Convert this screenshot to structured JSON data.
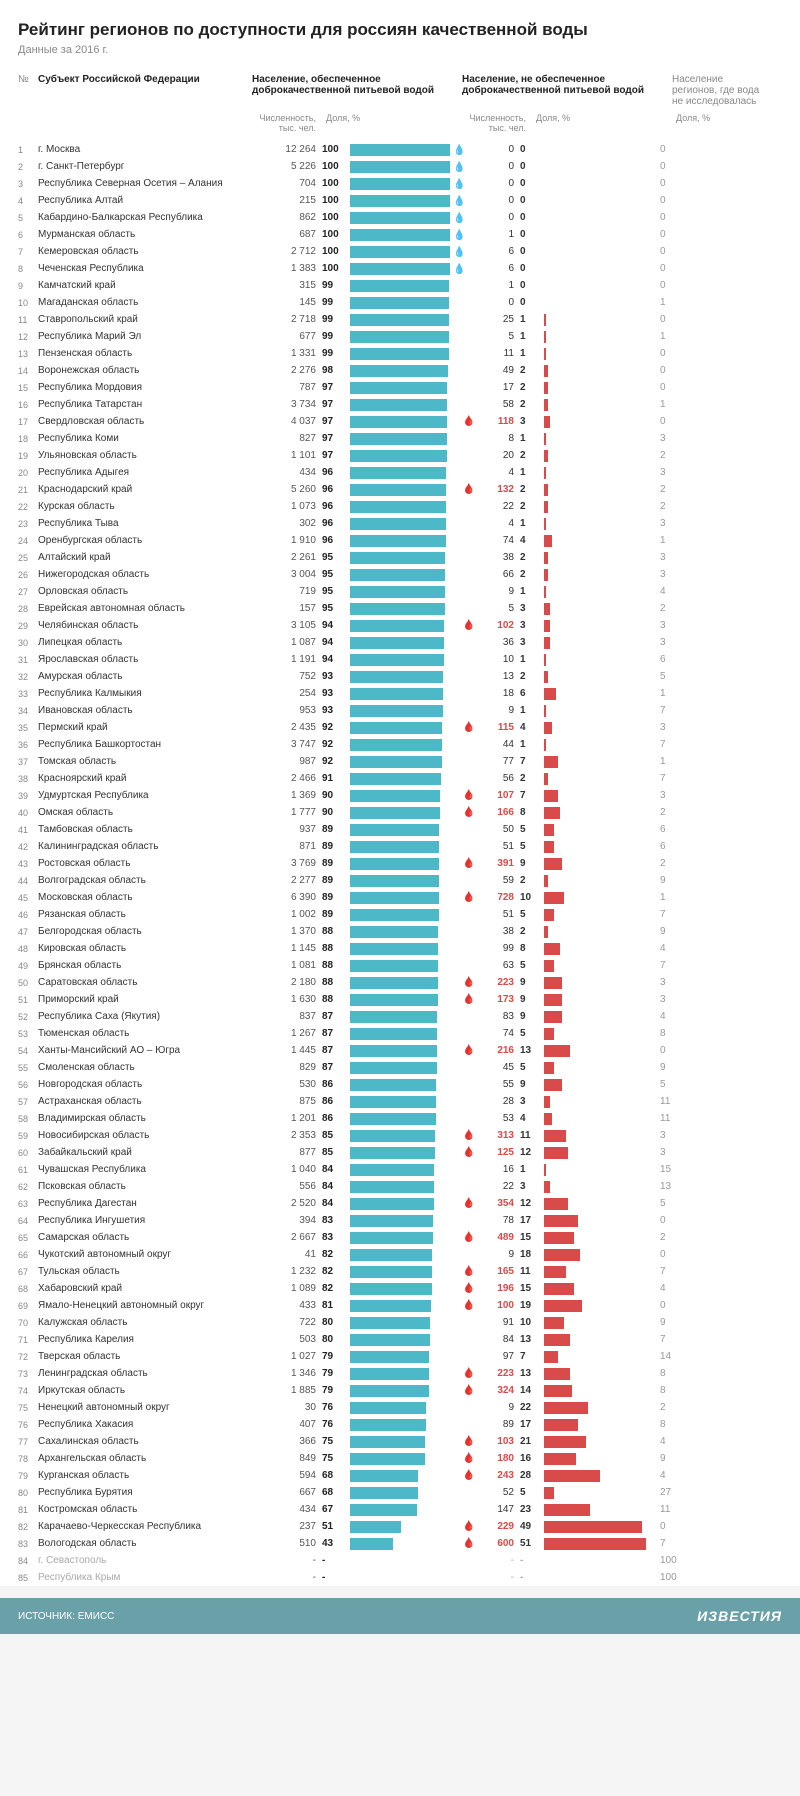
{
  "title": "Рейтинг регионов по доступности для россиян качественной воды",
  "subtitle": "Данные за 2016 г.",
  "headers": {
    "num": "№",
    "name": "Субъект Российской Федерации",
    "good": "Население, обеспеченное доброкачественной питьевой водой",
    "bad": "Население, не обеспеченное доброкачественной питьевой водой",
    "nores": "Население регионов, где вода не исследовалась",
    "pop": "Численность, тыс. чел.",
    "share": "Доля, %"
  },
  "colors": {
    "good_bar": "#4db8c7",
    "bad_bar": "#d94a4a",
    "background": "#ffffff",
    "footer_bg": "#6aa0a8",
    "muted": "#888888"
  },
  "footer": {
    "source": "ИСТОЧНИК: ЕМИСС",
    "brand": "ИЗВЕСТИЯ"
  },
  "rows": [
    {
      "n": 1,
      "name": "г. Москва",
      "gp": "12 264",
      "gs": 100,
      "bp": "0",
      "bs": 0,
      "nr": 0,
      "drop": true
    },
    {
      "n": 2,
      "name": "г. Санкт-Петербург",
      "gp": "5 226",
      "gs": 100,
      "bp": "0",
      "bs": 0,
      "nr": 0,
      "drop": true
    },
    {
      "n": 3,
      "name": "Республика Северная Осетия – Алания",
      "gp": "704",
      "gs": 100,
      "bp": "0",
      "bs": 0,
      "nr": 0,
      "drop": true
    },
    {
      "n": 4,
      "name": "Республика Алтай",
      "gp": "215",
      "gs": 100,
      "bp": "0",
      "bs": 0,
      "nr": 0,
      "drop": true
    },
    {
      "n": 5,
      "name": "Кабардино-Балкарская Республика",
      "gp": "862",
      "gs": 100,
      "bp": "0",
      "bs": 0,
      "nr": 0,
      "drop": true
    },
    {
      "n": 6,
      "name": "Мурманская область",
      "gp": "687",
      "gs": 100,
      "bp": "1",
      "bs": 0,
      "nr": 0,
      "drop": true
    },
    {
      "n": 7,
      "name": "Кемеровская область",
      "gp": "2 712",
      "gs": 100,
      "bp": "6",
      "bs": 0,
      "nr": 0,
      "drop": true
    },
    {
      "n": 8,
      "name": "Чеченская Республика",
      "gp": "1 383",
      "gs": 100,
      "bp": "6",
      "bs": 0,
      "nr": 0,
      "drop": true
    },
    {
      "n": 9,
      "name": "Камчатский край",
      "gp": "315",
      "gs": 99,
      "bp": "1",
      "bs": 0,
      "nr": 0
    },
    {
      "n": 10,
      "name": "Магаданская область",
      "gp": "145",
      "gs": 99,
      "bp": "0",
      "bs": 0,
      "nr": 1
    },
    {
      "n": 11,
      "name": "Ставропольский край",
      "gp": "2 718",
      "gs": 99,
      "bp": "25",
      "bs": 1,
      "nr": 0
    },
    {
      "n": 12,
      "name": "Республика Марий Эл",
      "gp": "677",
      "gs": 99,
      "bp": "5",
      "bs": 1,
      "nr": 1
    },
    {
      "n": 13,
      "name": "Пензенская область",
      "gp": "1 331",
      "gs": 99,
      "bp": "11",
      "bs": 1,
      "nr": 0
    },
    {
      "n": 14,
      "name": "Воронежская область",
      "gp": "2 276",
      "gs": 98,
      "bp": "49",
      "bs": 2,
      "nr": 0
    },
    {
      "n": 15,
      "name": "Республика Мордовия",
      "gp": "787",
      "gs": 97,
      "bp": "17",
      "bs": 2,
      "nr": 0
    },
    {
      "n": 16,
      "name": "Республика Татарстан",
      "gp": "3 734",
      "gs": 97,
      "bp": "58",
      "bs": 2,
      "nr": 1
    },
    {
      "n": 17,
      "name": "Свердловская область",
      "gp": "4 037",
      "gs": 97,
      "bp": "118",
      "bs": 3,
      "nr": 0,
      "flag": true
    },
    {
      "n": 18,
      "name": "Республика Коми",
      "gp": "827",
      "gs": 97,
      "bp": "8",
      "bs": 1,
      "nr": 3
    },
    {
      "n": 19,
      "name": "Ульяновская область",
      "gp": "1 101",
      "gs": 97,
      "bp": "20",
      "bs": 2,
      "nr": 2
    },
    {
      "n": 20,
      "name": "Республика Адыгея",
      "gp": "434",
      "gs": 96,
      "bp": "4",
      "bs": 1,
      "nr": 3
    },
    {
      "n": 21,
      "name": "Краснодарский край",
      "gp": "5 260",
      "gs": 96,
      "bp": "132",
      "bs": 2,
      "nr": 2,
      "flag": true
    },
    {
      "n": 22,
      "name": "Курская область",
      "gp": "1 073",
      "gs": 96,
      "bp": "22",
      "bs": 2,
      "nr": 2
    },
    {
      "n": 23,
      "name": "Республика Тыва",
      "gp": "302",
      "gs": 96,
      "bp": "4",
      "bs": 1,
      "nr": 3
    },
    {
      "n": 24,
      "name": "Оренбургская область",
      "gp": "1 910",
      "gs": 96,
      "bp": "74",
      "bs": 4,
      "nr": 1
    },
    {
      "n": 25,
      "name": "Алтайский край",
      "gp": "2 261",
      "gs": 95,
      "bp": "38",
      "bs": 2,
      "nr": 3
    },
    {
      "n": 26,
      "name": "Нижегородская область",
      "gp": "3 004",
      "gs": 95,
      "bp": "66",
      "bs": 2,
      "nr": 3
    },
    {
      "n": 27,
      "name": "Орловская область",
      "gp": "719",
      "gs": 95,
      "bp": "9",
      "bs": 1,
      "nr": 4
    },
    {
      "n": 28,
      "name": "Еврейская автономная область",
      "gp": "157",
      "gs": 95,
      "bp": "5",
      "bs": 3,
      "nr": 2
    },
    {
      "n": 29,
      "name": "Челябинская область",
      "gp": "3 105",
      "gs": 94,
      "bp": "102",
      "bs": 3,
      "nr": 3,
      "flag": true
    },
    {
      "n": 30,
      "name": "Липецкая область",
      "gp": "1 087",
      "gs": 94,
      "bp": "36",
      "bs": 3,
      "nr": 3
    },
    {
      "n": 31,
      "name": "Ярославская область",
      "gp": "1 191",
      "gs": 94,
      "bp": "10",
      "bs": 1,
      "nr": 6
    },
    {
      "n": 32,
      "name": "Амурская область",
      "gp": "752",
      "gs": 93,
      "bp": "13",
      "bs": 2,
      "nr": 5
    },
    {
      "n": 33,
      "name": "Республика Калмыкия",
      "gp": "254",
      "gs": 93,
      "bp": "18",
      "bs": 6,
      "nr": 1
    },
    {
      "n": 34,
      "name": "Ивановская область",
      "gp": "953",
      "gs": 93,
      "bp": "9",
      "bs": 1,
      "nr": 7
    },
    {
      "n": 35,
      "name": "Пермский край",
      "gp": "2 435",
      "gs": 92,
      "bp": "115",
      "bs": 4,
      "nr": 3,
      "flag": true
    },
    {
      "n": 36,
      "name": "Республика Башкортостан",
      "gp": "3 747",
      "gs": 92,
      "bp": "44",
      "bs": 1,
      "nr": 7
    },
    {
      "n": 37,
      "name": "Томская область",
      "gp": "987",
      "gs": 92,
      "bp": "77",
      "bs": 7,
      "nr": 1
    },
    {
      "n": 38,
      "name": "Красноярский край",
      "gp": "2 466",
      "gs": 91,
      "bp": "56",
      "bs": 2,
      "nr": 7
    },
    {
      "n": 39,
      "name": "Удмуртская Республика",
      "gp": "1 369",
      "gs": 90,
      "bp": "107",
      "bs": 7,
      "nr": 3,
      "flag": true
    },
    {
      "n": 40,
      "name": "Омская область",
      "gp": "1 777",
      "gs": 90,
      "bp": "166",
      "bs": 8,
      "nr": 2,
      "flag": true
    },
    {
      "n": 41,
      "name": "Тамбовская область",
      "gp": "937",
      "gs": 89,
      "bp": "50",
      "bs": 5,
      "nr": 6
    },
    {
      "n": 42,
      "name": "Калининградская область",
      "gp": "871",
      "gs": 89,
      "bp": "51",
      "bs": 5,
      "nr": 6
    },
    {
      "n": 43,
      "name": "Ростовская область",
      "gp": "3 769",
      "gs": 89,
      "bp": "391",
      "bs": 9,
      "nr": 2,
      "flag": true
    },
    {
      "n": 44,
      "name": "Волгоградская область",
      "gp": "2 277",
      "gs": 89,
      "bp": "59",
      "bs": 2,
      "nr": 9
    },
    {
      "n": 45,
      "name": "Московская область",
      "gp": "6 390",
      "gs": 89,
      "bp": "728",
      "bs": 10,
      "nr": 1,
      "flag": true
    },
    {
      "n": 46,
      "name": "Рязанская область",
      "gp": "1 002",
      "gs": 89,
      "bp": "51",
      "bs": 5,
      "nr": 7
    },
    {
      "n": 47,
      "name": "Белгородская область",
      "gp": "1 370",
      "gs": 88,
      "bp": "38",
      "bs": 2,
      "nr": 9
    },
    {
      "n": 48,
      "name": "Кировская область",
      "gp": "1 145",
      "gs": 88,
      "bp": "99",
      "bs": 8,
      "nr": 4
    },
    {
      "n": 49,
      "name": "Брянская область",
      "gp": "1 081",
      "gs": 88,
      "bp": "63",
      "bs": 5,
      "nr": 7
    },
    {
      "n": 50,
      "name": "Саратовская область",
      "gp": "2 180",
      "gs": 88,
      "bp": "223",
      "bs": 9,
      "nr": 3,
      "flag": true
    },
    {
      "n": 51,
      "name": "Приморский край",
      "gp": "1 630",
      "gs": 88,
      "bp": "173",
      "bs": 9,
      "nr": 3,
      "flag": true
    },
    {
      "n": 52,
      "name": "Республика Саха (Якутия)",
      "gp": "837",
      "gs": 87,
      "bp": "83",
      "bs": 9,
      "nr": 4
    },
    {
      "n": 53,
      "name": "Тюменская область",
      "gp": "1 267",
      "gs": 87,
      "bp": "74",
      "bs": 5,
      "nr": 8
    },
    {
      "n": 54,
      "name": "Ханты-Мансийский АО – Югра",
      "gp": "1 445",
      "gs": 87,
      "bp": "216",
      "bs": 13,
      "nr": 0,
      "flag": true
    },
    {
      "n": 55,
      "name": "Смоленская область",
      "gp": "829",
      "gs": 87,
      "bp": "45",
      "bs": 5,
      "nr": 9
    },
    {
      "n": 56,
      "name": "Новгородская область",
      "gp": "530",
      "gs": 86,
      "bp": "55",
      "bs": 9,
      "nr": 5
    },
    {
      "n": 57,
      "name": "Астраханская область",
      "gp": "875",
      "gs": 86,
      "bp": "28",
      "bs": 3,
      "nr": 11
    },
    {
      "n": 58,
      "name": "Владимирская область",
      "gp": "1 201",
      "gs": 86,
      "bp": "53",
      "bs": 4,
      "nr": 11
    },
    {
      "n": 59,
      "name": "Новосибирская область",
      "gp": "2 353",
      "gs": 85,
      "bp": "313",
      "bs": 11,
      "nr": 3,
      "flag": true
    },
    {
      "n": 60,
      "name": "Забайкальский край",
      "gp": "877",
      "gs": 85,
      "bp": "125",
      "bs": 12,
      "nr": 3,
      "flag": true
    },
    {
      "n": 61,
      "name": "Чувашская Республика",
      "gp": "1 040",
      "gs": 84,
      "bp": "16",
      "bs": 1,
      "nr": 15
    },
    {
      "n": 62,
      "name": "Псковская область",
      "gp": "556",
      "gs": 84,
      "bp": "22",
      "bs": 3,
      "nr": 13
    },
    {
      "n": 63,
      "name": "Республика Дагестан",
      "gp": "2 520",
      "gs": 84,
      "bp": "354",
      "bs": 12,
      "nr": 5,
      "flag": true
    },
    {
      "n": 64,
      "name": "Республика Ингушетия",
      "gp": "394",
      "gs": 83,
      "bp": "78",
      "bs": 17,
      "nr": 0
    },
    {
      "n": 65,
      "name": "Самарская область",
      "gp": "2 667",
      "gs": 83,
      "bp": "489",
      "bs": 15,
      "nr": 2,
      "flag": true
    },
    {
      "n": 66,
      "name": "Чукотский автономный округ",
      "gp": "41",
      "gs": 82,
      "bp": "9",
      "bs": 18,
      "nr": 0
    },
    {
      "n": 67,
      "name": "Тульская область",
      "gp": "1 232",
      "gs": 82,
      "bp": "165",
      "bs": 11,
      "nr": 7,
      "flag": true
    },
    {
      "n": 68,
      "name": "Хабаровский край",
      "gp": "1 089",
      "gs": 82,
      "bp": "196",
      "bs": 15,
      "nr": 4,
      "flag": true
    },
    {
      "n": 69,
      "name": "Ямало-Ненецкий автономный округ",
      "gp": "433",
      "gs": 81,
      "bp": "100",
      "bs": 19,
      "nr": 0,
      "flag": true
    },
    {
      "n": 70,
      "name": "Калужская область",
      "gp": "722",
      "gs": 80,
      "bp": "91",
      "bs": 10,
      "nr": 9
    },
    {
      "n": 71,
      "name": "Республика Карелия",
      "gp": "503",
      "gs": 80,
      "bp": "84",
      "bs": 13,
      "nr": 7
    },
    {
      "n": 72,
      "name": "Тверская область",
      "gp": "1 027",
      "gs": 79,
      "bp": "97",
      "bs": 7,
      "nr": 14
    },
    {
      "n": 73,
      "name": "Ленинградская область",
      "gp": "1 346",
      "gs": 79,
      "bp": "223",
      "bs": 13,
      "nr": 8,
      "flag": true
    },
    {
      "n": 74,
      "name": "Иркутская область",
      "gp": "1 885",
      "gs": 79,
      "bp": "324",
      "bs": 14,
      "nr": 8,
      "flag": true
    },
    {
      "n": 75,
      "name": "Ненецкий автономный округ",
      "gp": "30",
      "gs": 76,
      "bp": "9",
      "bs": 22,
      "nr": 2
    },
    {
      "n": 76,
      "name": "Республика Хакасия",
      "gp": "407",
      "gs": 76,
      "bp": "89",
      "bs": 17,
      "nr": 8
    },
    {
      "n": 77,
      "name": "Сахалинская область",
      "gp": "366",
      "gs": 75,
      "bp": "103",
      "bs": 21,
      "nr": 4,
      "flag": true
    },
    {
      "n": 78,
      "name": "Архангельская область",
      "gp": "849",
      "gs": 75,
      "bp": "180",
      "bs": 16,
      "nr": 9,
      "flag": true
    },
    {
      "n": 79,
      "name": "Курганская область",
      "gp": "594",
      "gs": 68,
      "bp": "243",
      "bs": 28,
      "nr": 4,
      "flag": true
    },
    {
      "n": 80,
      "name": "Республика Бурятия",
      "gp": "667",
      "gs": 68,
      "bp": "52",
      "bs": 5,
      "nr": 27
    },
    {
      "n": 81,
      "name": "Костромская область",
      "gp": "434",
      "gs": 67,
      "bp": "147",
      "bs": 23,
      "nr": 11
    },
    {
      "n": 82,
      "name": "Карачаево-Черкесская Республика",
      "gp": "237",
      "gs": 51,
      "bp": "229",
      "bs": 49,
      "nr": 0,
      "flag": true
    },
    {
      "n": 83,
      "name": "Вологодская область",
      "gp": "510",
      "gs": 43,
      "bp": "600",
      "bs": 51,
      "nr": 7,
      "flag": true
    },
    {
      "n": 84,
      "name": "г. Севастополь",
      "gp": "-",
      "gs": "-",
      "bp": "-",
      "bs": "-",
      "nr": 100,
      "nd": true
    },
    {
      "n": 85,
      "name": "Республика Крым",
      "gp": "-",
      "gs": "-",
      "bp": "-",
      "bs": "-",
      "nr": 100,
      "nd": true
    }
  ]
}
